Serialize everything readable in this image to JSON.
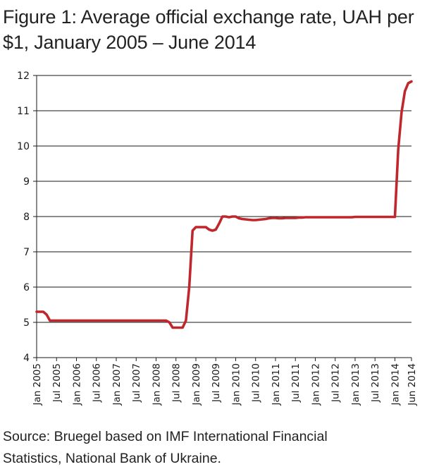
{
  "title_line1": "Figure 1: Average official exchange rate, UAH per",
  "title_line2": "$1, January 2005 – June 2014",
  "source_line1": "Source: Bruegel based on IMF International Financial",
  "source_line2": "Statistics, National Bank of Ukraine.",
  "chart_data": {
    "type": "line",
    "title": "Figure 1: Average official exchange rate, UAH per $1, January 2005 – June 2014",
    "xlabel": "",
    "ylabel": "",
    "ylim": [
      4,
      12
    ],
    "yticks": [
      4,
      5,
      6,
      7,
      8,
      9,
      10,
      11,
      12
    ],
    "xlim": [
      "2005-01",
      "2014-06"
    ],
    "xtick_labels": [
      {
        "label": "Jan 2005",
        "date": "2005-01"
      },
      {
        "label": "Jul 2005",
        "date": "2005-07"
      },
      {
        "label": "Jan 2006",
        "date": "2006-01"
      },
      {
        "label": "Jul 2006",
        "date": "2006-07"
      },
      {
        "label": "Jan 2007",
        "date": "2007-01"
      },
      {
        "label": "Jul 2007",
        "date": "2007-07"
      },
      {
        "label": "Jan 2008",
        "date": "2008-01"
      },
      {
        "label": "Jul 2008",
        "date": "2008-07"
      },
      {
        "label": "Jan 2009",
        "date": "2009-01"
      },
      {
        "label": "Jul 2009",
        "date": "2009-07"
      },
      {
        "label": "Jan 2010",
        "date": "2010-01"
      },
      {
        "label": "Jul 2010",
        "date": "2010-07"
      },
      {
        "label": "Jan 2011",
        "date": "2011-01"
      },
      {
        "label": "Jul 2011",
        "date": "2011-07"
      },
      {
        "label": "Jan 2012",
        "date": "2012-01"
      },
      {
        "label": "Jul 2012",
        "date": "2012-07"
      },
      {
        "label": "Jan 2013",
        "date": "2013-01"
      },
      {
        "label": "Jul 2013",
        "date": "2013-07"
      },
      {
        "label": "Jan 2014",
        "date": "2014-01"
      },
      {
        "label": "Jun 2014",
        "date": "2014-06"
      }
    ],
    "grid": "horizontal",
    "line_color": "#c0272d",
    "series": [
      {
        "x": [
          "2005-01",
          "2005-02",
          "2005-03",
          "2005-04",
          "2005-05",
          "2005-06",
          "2005-07",
          "2005-08",
          "2005-09",
          "2005-10",
          "2005-11",
          "2005-12",
          "2006-01",
          "2006-02",
          "2006-03",
          "2006-04",
          "2006-05",
          "2006-06",
          "2006-07",
          "2006-08",
          "2006-09",
          "2006-10",
          "2006-11",
          "2006-12",
          "2007-01",
          "2007-02",
          "2007-03",
          "2007-04",
          "2007-05",
          "2007-06",
          "2007-07",
          "2007-08",
          "2007-09",
          "2007-10",
          "2007-11",
          "2007-12",
          "2008-01",
          "2008-02",
          "2008-03",
          "2008-04",
          "2008-05",
          "2008-06",
          "2008-07",
          "2008-08",
          "2008-09",
          "2008-10",
          "2008-11",
          "2008-12",
          "2009-01",
          "2009-02",
          "2009-03",
          "2009-04",
          "2009-05",
          "2009-06",
          "2009-07",
          "2009-08",
          "2009-09",
          "2009-10",
          "2009-11",
          "2009-12",
          "2010-01",
          "2010-02",
          "2010-03",
          "2010-04",
          "2010-05",
          "2010-06",
          "2010-07",
          "2010-08",
          "2010-09",
          "2010-10",
          "2010-11",
          "2010-12",
          "2011-01",
          "2011-02",
          "2011-03",
          "2011-04",
          "2011-05",
          "2011-06",
          "2011-07",
          "2011-08",
          "2011-09",
          "2011-10",
          "2011-11",
          "2011-12",
          "2012-01",
          "2012-02",
          "2012-03",
          "2012-04",
          "2012-05",
          "2012-06",
          "2012-07",
          "2012-08",
          "2012-09",
          "2012-10",
          "2012-11",
          "2012-12",
          "2013-01",
          "2013-02",
          "2013-03",
          "2013-04",
          "2013-05",
          "2013-06",
          "2013-07",
          "2013-08",
          "2013-09",
          "2013-10",
          "2013-11",
          "2013-12",
          "2014-01",
          "2014-02",
          "2014-03",
          "2014-04",
          "2014-05",
          "2014-06"
        ],
        "values": [
          5.3,
          5.3,
          5.3,
          5.22,
          5.05,
          5.05,
          5.05,
          5.05,
          5.05,
          5.05,
          5.05,
          5.05,
          5.05,
          5.05,
          5.05,
          5.05,
          5.05,
          5.05,
          5.05,
          5.05,
          5.05,
          5.05,
          5.05,
          5.05,
          5.05,
          5.05,
          5.05,
          5.05,
          5.05,
          5.05,
          5.05,
          5.05,
          5.05,
          5.05,
          5.05,
          5.05,
          5.05,
          5.05,
          5.05,
          5.05,
          5.0,
          4.85,
          4.85,
          4.85,
          4.85,
          5.05,
          6.0,
          7.6,
          7.7,
          7.7,
          7.7,
          7.7,
          7.63,
          7.6,
          7.63,
          7.8,
          8.0,
          8.0,
          7.98,
          8.0,
          8.0,
          7.95,
          7.93,
          7.92,
          7.91,
          7.9,
          7.9,
          7.91,
          7.92,
          7.93,
          7.95,
          7.96,
          7.96,
          7.95,
          7.95,
          7.96,
          7.96,
          7.96,
          7.96,
          7.97,
          7.97,
          7.98,
          7.98,
          7.98,
          7.98,
          7.98,
          7.98,
          7.98,
          7.98,
          7.98,
          7.98,
          7.98,
          7.98,
          7.98,
          7.98,
          7.98,
          7.99,
          7.99,
          7.99,
          7.99,
          7.99,
          7.99,
          7.99,
          7.99,
          7.99,
          7.99,
          7.99,
          7.99,
          7.99,
          9.9,
          10.95,
          11.55,
          11.78,
          11.83
        ]
      }
    ]
  }
}
